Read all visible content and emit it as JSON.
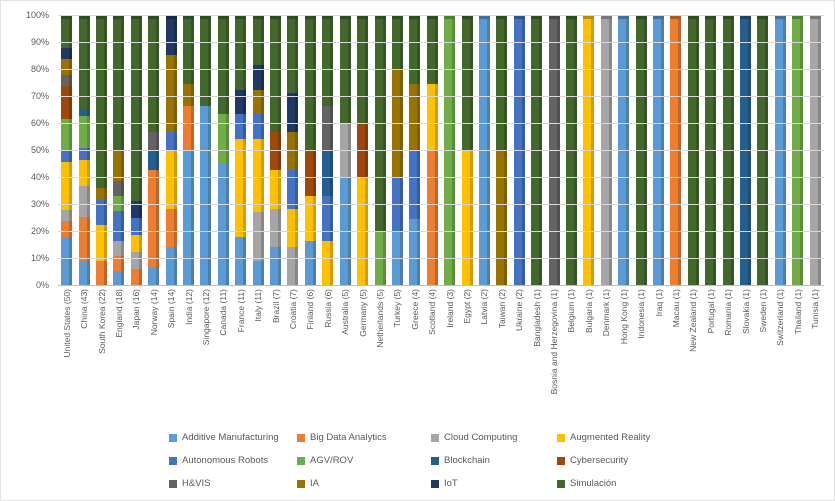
{
  "chart_data": {
    "type": "bar",
    "subtype": "stacked-100",
    "title": "",
    "xlabel": "",
    "ylabel": "",
    "grid": true,
    "legend_position": "bottom",
    "y_axis": {
      "min": 0,
      "max": 100,
      "ticks": [
        "0%",
        "10%",
        "20%",
        "30%",
        "40%",
        "50%",
        "60%",
        "70%",
        "80%",
        "90%",
        "100%"
      ]
    },
    "categories": [
      "United States (50)",
      "China (43)",
      "South Korea (22)",
      "England (18)",
      "Japan (16)",
      "Norway (14)",
      "Spain (14)",
      "India (12)",
      "Singapore (12)",
      "Canada (11)",
      "France (11)",
      "Italy (11)",
      "Brazil (7)",
      "Croatia (7)",
      "Finland (6)",
      "Russia (6)",
      "Australia (5)",
      "Germany (5)",
      "Netherlands (5)",
      "Turkey (5)",
      "Greece (4)",
      "Scotland (4)",
      "Ireland (3)",
      "Egypt (2)",
      "Latvia (2)",
      "Taiwan (2)",
      "Ukraine (2)",
      "Bangladesh (1)",
      "Bosnia and Herzegovina (1)",
      "Belgium (1)",
      "Bulgaria (1)",
      "Denmark (1)",
      "Hong Kong (1)",
      "Indonesia (1)",
      "Iraq (1)",
      "Macau (1)",
      "New Zealand (1)",
      "Portugal (1)",
      "Romania (1)",
      "Slovakia (1)",
      "Sweden (1)",
      "Switzerland (1)",
      "Thailand (1)",
      "Tunisia (1)"
    ],
    "series": [
      {
        "name": "Additive Manufacturing",
        "color": "#5B9BD5",
        "values": [
          18,
          9.3,
          0,
          5.6,
          0,
          7.1,
          14.3,
          50,
          66.7,
          45.5,
          18.2,
          9.1,
          14.3,
          0,
          16.7,
          0,
          40,
          0,
          0,
          20,
          25,
          0,
          0,
          0,
          100,
          0,
          0,
          0,
          0,
          0,
          0,
          0,
          100,
          0,
          100,
          0,
          0,
          0,
          0,
          0,
          0,
          100,
          0,
          0
        ]
      },
      {
        "name": "Big Data Analytics",
        "color": "#ED7D31",
        "values": [
          6,
          16.3,
          9.1,
          5.6,
          6.3,
          35.7,
          14.3,
          16.7,
          0,
          0,
          0,
          0,
          0,
          0,
          0,
          0,
          0,
          0,
          0,
          0,
          0,
          50,
          0,
          0,
          0,
          0,
          0,
          0,
          0,
          0,
          0,
          0,
          0,
          0,
          0,
          100,
          0,
          0,
          0,
          0,
          0,
          0,
          0,
          0
        ]
      },
      {
        "name": "Cloud Computing",
        "color": "#A5A5A5",
        "values": [
          4,
          11.6,
          0,
          5.6,
          6.3,
          0,
          0,
          0,
          0,
          0,
          0,
          18.2,
          14.3,
          14.3,
          0,
          0,
          20,
          0,
          0,
          0,
          0,
          0,
          0,
          0,
          0,
          0,
          0,
          0,
          0,
          0,
          0,
          100,
          0,
          0,
          0,
          0,
          0,
          0,
          0,
          0,
          0,
          0,
          0,
          100
        ]
      },
      {
        "name": "Augmented Reality",
        "color": "#FFC000",
        "values": [
          18,
          9.3,
          13.6,
          0,
          6.3,
          0,
          21.4,
          0,
          0,
          0,
          36.4,
          27.3,
          14.3,
          14.3,
          16.7,
          16.7,
          0,
          40,
          0,
          0,
          0,
          25,
          0,
          50,
          0,
          0,
          0,
          0,
          0,
          0,
          100,
          0,
          0,
          0,
          0,
          0,
          0,
          0,
          0,
          0,
          0,
          0,
          0,
          0
        ]
      },
      {
        "name": "Autonomous Robots",
        "color": "#4472C4",
        "values": [
          4,
          4.7,
          9.1,
          11.1,
          6.3,
          0,
          7.1,
          0,
          0,
          0,
          9.1,
          9.1,
          0,
          14.3,
          0,
          16.7,
          0,
          0,
          0,
          20,
          25,
          0,
          0,
          0,
          0,
          0,
          100,
          0,
          0,
          0,
          0,
          0,
          0,
          0,
          0,
          0,
          0,
          0,
          0,
          0,
          0,
          0,
          0,
          0
        ]
      },
      {
        "name": "AGV/ROV",
        "color": "#70AD47",
        "values": [
          12,
          11.6,
          0,
          5.6,
          0,
          0,
          0,
          0,
          0,
          18.2,
          0,
          0,
          0,
          0,
          0,
          0,
          0,
          0,
          20,
          0,
          0,
          0,
          100,
          0,
          0,
          0,
          0,
          0,
          0,
          0,
          0,
          0,
          0,
          0,
          0,
          0,
          0,
          0,
          0,
          0,
          0,
          0,
          100,
          0
        ]
      },
      {
        "name": "Blockchain",
        "color": "#255E91",
        "values": [
          0,
          2.3,
          0,
          0,
          0,
          7.1,
          0,
          0,
          0,
          0,
          0,
          0,
          0,
          0,
          0,
          16.7,
          0,
          0,
          0,
          0,
          0,
          0,
          0,
          0,
          0,
          0,
          0,
          0,
          0,
          0,
          0,
          0,
          0,
          0,
          0,
          0,
          0,
          0,
          0,
          100,
          0,
          0,
          0,
          0
        ]
      },
      {
        "name": "Cybersecurity",
        "color": "#9E480E",
        "values": [
          12,
          0,
          0,
          0,
          0,
          0,
          0,
          0,
          0,
          0,
          0,
          0,
          14.3,
          0,
          16.7,
          0,
          0,
          20,
          0,
          0,
          0,
          0,
          0,
          0,
          0,
          0,
          0,
          0,
          0,
          0,
          0,
          0,
          0,
          0,
          0,
          0,
          0,
          0,
          0,
          0,
          0,
          0,
          0,
          0
        ]
      },
      {
        "name": "H&VIS",
        "color": "#636363",
        "values": [
          4,
          0,
          0,
          5.6,
          0,
          7.1,
          0,
          0,
          0,
          0,
          0,
          0,
          0,
          0,
          0,
          16.7,
          0,
          0,
          0,
          0,
          0,
          0,
          0,
          0,
          0,
          0,
          0,
          0,
          100,
          0,
          0,
          0,
          0,
          0,
          0,
          0,
          0,
          0,
          0,
          0,
          0,
          0,
          0,
          0
        ]
      },
      {
        "name": "IA",
        "color": "#997300",
        "values": [
          6,
          0,
          4.5,
          11.1,
          0,
          0,
          28.6,
          8.3,
          0,
          0,
          0,
          9.1,
          0,
          14.3,
          0,
          0,
          0,
          0,
          0,
          40,
          25,
          0,
          0,
          0,
          0,
          50,
          0,
          0,
          0,
          0,
          0,
          0,
          0,
          0,
          0,
          0,
          0,
          0,
          0,
          0,
          0,
          0,
          0,
          0
        ]
      },
      {
        "name": "IoT",
        "color": "#1F3864",
        "values": [
          4,
          0,
          0,
          0,
          6.3,
          0,
          14.3,
          0,
          0,
          0,
          9.1,
          9.1,
          0,
          14.3,
          0,
          0,
          0,
          0,
          0,
          0,
          0,
          0,
          0,
          0,
          0,
          0,
          0,
          0,
          0,
          0,
          0,
          0,
          0,
          0,
          0,
          0,
          0,
          0,
          0,
          0,
          0,
          0,
          0,
          0
        ]
      },
      {
        "name": "Simulación",
        "color": "#43682B",
        "values": [
          12,
          34.9,
          63.6,
          50,
          68.8,
          42.9,
          0,
          25,
          33.3,
          36.4,
          27.3,
          18.2,
          42.9,
          28.6,
          50,
          33.3,
          40,
          40,
          80,
          20,
          25,
          25,
          0,
          50,
          0,
          50,
          0,
          100,
          0,
          100,
          0,
          0,
          0,
          100,
          0,
          0,
          100,
          100,
          100,
          0,
          100,
          0,
          0,
          0
        ]
      }
    ]
  }
}
